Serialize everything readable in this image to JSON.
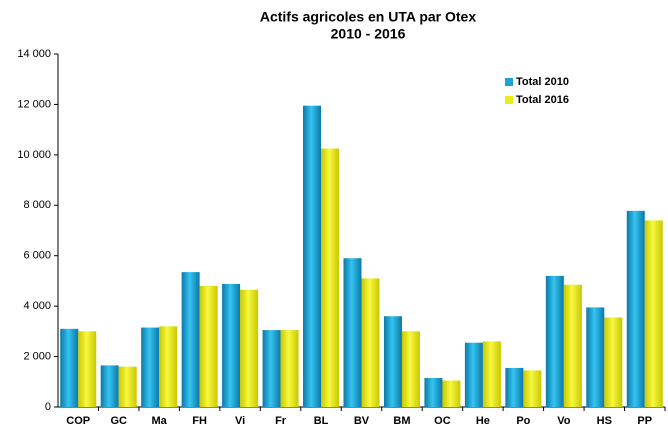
{
  "chart_data": {
    "type": "bar",
    "title": "Actifs agricoles en UTA par Otex",
    "subtitle": "2010 - 2016",
    "categories": [
      "COP",
      "GC",
      "Ma",
      "FH",
      "Vi",
      "Fr",
      "BL",
      "BV",
      "BM",
      "OC",
      "He",
      "Po",
      "Vo",
      "HS",
      "PP"
    ],
    "series": [
      {
        "name": "Total 2010",
        "color": "#1aa3d8",
        "values": [
          3100,
          1650,
          3150,
          5350,
          4880,
          3050,
          11950,
          5900,
          3600,
          1150,
          2550,
          1550,
          5200,
          3950,
          7780
        ]
      },
      {
        "name": "Total 2016",
        "color": "#ecec1a",
        "values": [
          3000,
          1600,
          3200,
          4800,
          4650,
          3050,
          10250,
          5100,
          3000,
          1050,
          2600,
          1450,
          4850,
          3550,
          7400
        ]
      }
    ],
    "ylim": [
      0,
      14000
    ],
    "yticks": [
      0,
      {
        "value": 2000,
        "label": "2 000"
      },
      {
        "value": 4000,
        "label": "4 000"
      },
      {
        "value": 6000,
        "label": "6 000"
      },
      {
        "value": 8000,
        "label": "8 000"
      },
      {
        "value": 10000,
        "label": "10 000"
      },
      {
        "value": 12000,
        "label": "12 000"
      },
      {
        "value": 14000,
        "label": "14 000"
      }
    ],
    "legend": "top-right"
  }
}
